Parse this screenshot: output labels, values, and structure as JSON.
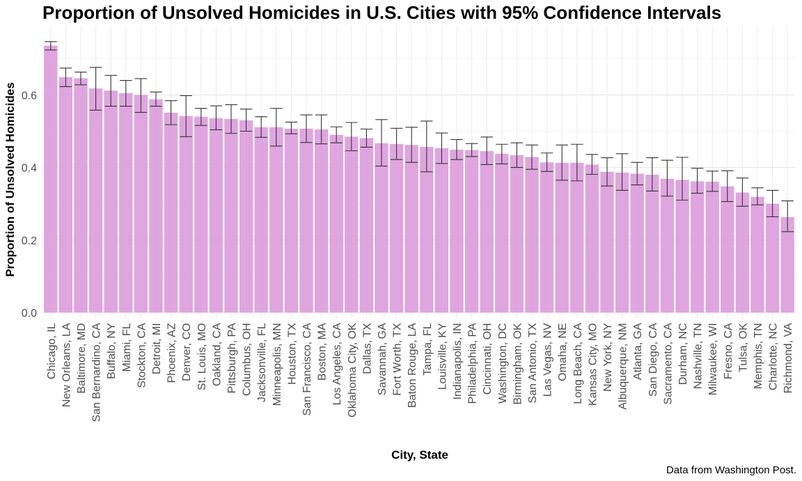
{
  "chart_data": {
    "type": "bar",
    "title": "Proportion of Unsolved Homicides in U.S. Cities with 95% Confidence Intervals",
    "xlabel": "City, State",
    "ylabel": "Proportion of Unsolved Homicides",
    "caption": "Data from Washington Post.",
    "ylim": [
      0,
      0.75
    ],
    "yticks": [
      "0.0",
      "0.2",
      "0.4",
      "0.6"
    ],
    "grid": true,
    "bar_color": "#DDA0DD",
    "errorbar_color": "#333333",
    "categories": [
      "Chicago, IL",
      "New Orleans, LA",
      "Baltimore, MD",
      "San Bernardino, CA",
      "Buffalo, NY",
      "Miami, FL",
      "Stockton, CA",
      "Detroit, MI",
      "Phoenix, AZ",
      "Denver, CO",
      "St. Louis, MO",
      "Oakland, CA",
      "Pittsburgh, PA",
      "Columbus, OH",
      "Jacksonville, FL",
      "Minneapolis, MN",
      "Houston, TX",
      "San Francisco, CA",
      "Boston, MA",
      "Los Angeles, CA",
      "Oklahoma City, OK",
      "Dallas, TX",
      "Savannah, GA",
      "Fort Worth, TX",
      "Baton Rouge, LA",
      "Tampa, FL",
      "Louisville, KY",
      "Indianapolis, IN",
      "Philadelphia, PA",
      "Cincinnati, OH",
      "Washington, DC",
      "Birmingham, OK",
      "San Antonio, TX",
      "Las Vegas, NV",
      "Omaha, NE",
      "Long Beach, CA",
      "Kansas City, MO",
      "New York, NY",
      "Albuquerque, NM",
      "Atlanta, GA",
      "San Diego, CA",
      "Sacramento, CA",
      "Durham, NC",
      "Nashville, TN",
      "Milwaukee, WI",
      "Fresno, CA",
      "Tulsa, OK",
      "Memphis, TN",
      "Charlotte, NC",
      "Richmond, VA"
    ],
    "values": [
      0.736,
      0.649,
      0.646,
      0.618,
      0.612,
      0.605,
      0.6,
      0.588,
      0.551,
      0.542,
      0.54,
      0.536,
      0.534,
      0.53,
      0.511,
      0.511,
      0.507,
      0.507,
      0.505,
      0.49,
      0.485,
      0.481,
      0.467,
      0.465,
      0.462,
      0.457,
      0.453,
      0.449,
      0.448,
      0.445,
      0.438,
      0.434,
      0.429,
      0.414,
      0.413,
      0.413,
      0.408,
      0.388,
      0.386,
      0.383,
      0.38,
      0.369,
      0.366,
      0.362,
      0.361,
      0.348,
      0.331,
      0.319,
      0.3,
      0.263
    ],
    "ci_low": [
      0.724,
      0.623,
      0.628,
      0.558,
      0.569,
      0.569,
      0.552,
      0.569,
      0.518,
      0.485,
      0.516,
      0.504,
      0.494,
      0.5,
      0.483,
      0.459,
      0.493,
      0.469,
      0.465,
      0.468,
      0.446,
      0.456,
      0.404,
      0.422,
      0.414,
      0.388,
      0.411,
      0.422,
      0.43,
      0.408,
      0.41,
      0.4,
      0.395,
      0.389,
      0.365,
      0.363,
      0.381,
      0.349,
      0.337,
      0.352,
      0.335,
      0.321,
      0.31,
      0.329,
      0.334,
      0.306,
      0.293,
      0.297,
      0.264,
      0.223
    ],
    "ci_high": [
      0.747,
      0.674,
      0.663,
      0.676,
      0.654,
      0.64,
      0.645,
      0.608,
      0.584,
      0.598,
      0.563,
      0.57,
      0.573,
      0.561,
      0.54,
      0.563,
      0.525,
      0.545,
      0.545,
      0.512,
      0.524,
      0.506,
      0.532,
      0.508,
      0.511,
      0.528,
      0.495,
      0.477,
      0.466,
      0.484,
      0.464,
      0.468,
      0.462,
      0.44,
      0.462,
      0.464,
      0.436,
      0.427,
      0.438,
      0.414,
      0.427,
      0.42,
      0.428,
      0.398,
      0.39,
      0.391,
      0.371,
      0.344,
      0.337,
      0.308
    ]
  }
}
